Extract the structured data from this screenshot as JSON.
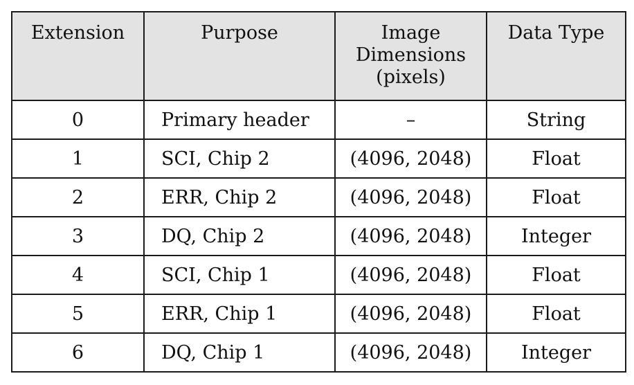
{
  "table": {
    "headers": {
      "extension": "Extension",
      "purpose": "Purpose",
      "dimensions_line1": "Image",
      "dimensions_line2": "Dimensions",
      "dimensions_line3": "(pixels)",
      "data_type": "Data Type"
    },
    "rows": [
      {
        "extension": "0",
        "purpose": "Primary header",
        "dimensions": "–",
        "data_type": "String"
      },
      {
        "extension": "1",
        "purpose": "SCI, Chip 2",
        "dimensions": "(4096, 2048)",
        "data_type": "Float"
      },
      {
        "extension": "2",
        "purpose": "ERR, Chip 2",
        "dimensions": "(4096, 2048)",
        "data_type": "Float"
      },
      {
        "extension": "3",
        "purpose": "DQ, Chip 2",
        "dimensions": "(4096, 2048)",
        "data_type": "Integer"
      },
      {
        "extension": "4",
        "purpose": "SCI, Chip 1",
        "dimensions": "(4096, 2048)",
        "data_type": "Float"
      },
      {
        "extension": "5",
        "purpose": "ERR, Chip 1",
        "dimensions": "(4096, 2048)",
        "data_type": "Float"
      },
      {
        "extension": "6",
        "purpose": "DQ, Chip 1",
        "dimensions": "(4096, 2048)",
        "data_type": "Integer"
      }
    ]
  }
}
